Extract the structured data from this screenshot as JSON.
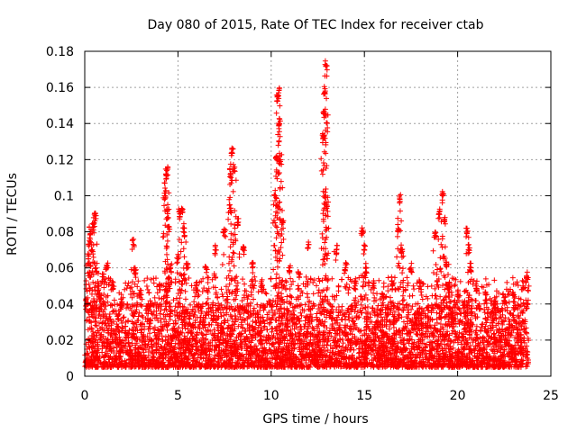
{
  "chart_data": {
    "type": "scatter",
    "title": "Day 080 of 2015, Rate Of TEC Index for receiver ctab",
    "xlabel": "GPS time / hours",
    "ylabel": "ROTI / TECUs",
    "xlim": [
      0,
      25
    ],
    "ylim": [
      0,
      0.18
    ],
    "x_ticks": [
      0,
      5,
      10,
      15,
      20,
      25
    ],
    "x_tick_labels": [
      "0",
      "5",
      "10",
      "15",
      "20",
      "25"
    ],
    "y_ticks": [
      0,
      0.02,
      0.04,
      0.06,
      0.08,
      0.1,
      0.12,
      0.14,
      0.16,
      0.18
    ],
    "y_tick_labels": [
      "0",
      "0.02",
      "0.04",
      "0.06",
      "0.08",
      "0.1",
      "0.12",
      "0.14",
      "0.16",
      "0.18"
    ],
    "grid": true,
    "marker": "plus",
    "color": "#ff0000",
    "data_extent_hours": [
      0,
      23.8
    ],
    "background_band": {
      "typical_min": 0.005,
      "typical_max": 0.04
    },
    "series": [
      {
        "name": "ROTI",
        "x": [
          0.1,
          0.2,
          0.25,
          0.3,
          0.4,
          0.5,
          0.55,
          0.6,
          0.7,
          0.8,
          1.0,
          1.2,
          1.5,
          2.0,
          2.6,
          2.7,
          3.0,
          3.5,
          4.0,
          4.3,
          4.35,
          4.4,
          4.45,
          4.5,
          4.6,
          5.0,
          5.1,
          5.2,
          5.3,
          5.5,
          6.0,
          6.5,
          7.0,
          7.5,
          7.8,
          7.85,
          7.9,
          8.0,
          8.2,
          8.5,
          9.0,
          9.5,
          10.2,
          10.3,
          10.35,
          10.4,
          10.45,
          10.5,
          10.6,
          11.0,
          11.5,
          12.0,
          12.8,
          12.85,
          12.9,
          12.95,
          13.0,
          13.5,
          14.0,
          14.5,
          14.9,
          15.0,
          15.1,
          15.5,
          16.0,
          16.5,
          16.8,
          16.9,
          17.0,
          17.5,
          18.0,
          18.8,
          19.0,
          19.2,
          19.3,
          19.4,
          19.5,
          20.0,
          20.5,
          20.6,
          20.7,
          21.0,
          21.5,
          22.0,
          22.5,
          23.0,
          23.5,
          23.7
        ],
        "y": [
          0.04,
          0.065,
          0.075,
          0.08,
          0.07,
          0.085,
          0.09,
          0.06,
          0.05,
          0.045,
          0.055,
          0.06,
          0.05,
          0.04,
          0.073,
          0.06,
          0.045,
          0.04,
          0.05,
          0.1,
          0.112,
          0.114,
          0.09,
          0.08,
          0.06,
          0.065,
          0.09,
          0.093,
          0.08,
          0.06,
          0.05,
          0.06,
          0.07,
          0.08,
          0.093,
          0.11,
          0.124,
          0.115,
          0.085,
          0.07,
          0.06,
          0.05,
          0.1,
          0.122,
          0.155,
          0.157,
          0.14,
          0.12,
          0.085,
          0.06,
          0.055,
          0.073,
          0.133,
          0.146,
          0.158,
          0.172,
          0.094,
          0.07,
          0.06,
          0.05,
          0.08,
          0.07,
          0.06,
          0.05,
          0.045,
          0.05,
          0.08,
          0.098,
          0.07,
          0.06,
          0.05,
          0.078,
          0.09,
          0.1,
          0.086,
          0.062,
          0.05,
          0.045,
          0.079,
          0.07,
          0.06,
          0.05,
          0.045,
          0.04,
          0.042,
          0.045,
          0.05,
          0.055
        ]
      }
    ]
  }
}
